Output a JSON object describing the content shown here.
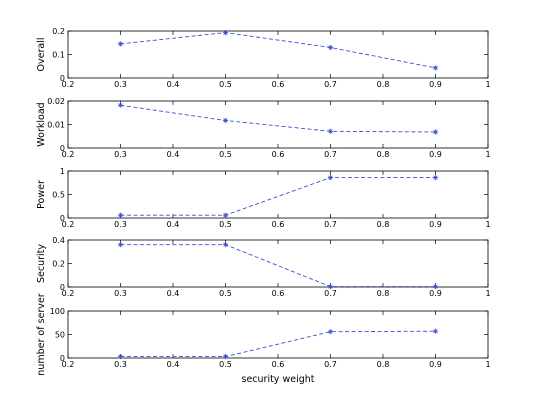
{
  "figure": {
    "xlabel": "security weight",
    "line_color": "#3b4fd6",
    "axis_color": "#000000",
    "marker": "asterisk",
    "line_style": "dashed"
  },
  "chart_data": [
    {
      "type": "line",
      "ylabel": "Overall",
      "xlabel": "",
      "xlim": [
        0.2,
        1
      ],
      "ylim": [
        0,
        0.2
      ],
      "xticks": [
        "0.2",
        "0.3",
        "0.4",
        "0.5",
        "0.6",
        "0.7",
        "0.8",
        "0.9",
        "1"
      ],
      "yticks": [
        "0",
        "0.1",
        "0.2"
      ],
      "ytick_values": [
        0,
        0.1,
        0.2
      ],
      "grid": false,
      "series": [
        {
          "x": [
            0.3,
            0.5,
            0.7,
            0.9
          ],
          "y": [
            0.145,
            0.193,
            0.13,
            0.043
          ]
        }
      ]
    },
    {
      "type": "line",
      "ylabel": "Workload",
      "xlabel": "",
      "xlim": [
        0.2,
        1
      ],
      "ylim": [
        0,
        0.02
      ],
      "xticks": [
        "0.2",
        "0.3",
        "0.4",
        "0.5",
        "0.6",
        "0.7",
        "0.8",
        "0.9",
        "1"
      ],
      "yticks": [
        "0",
        "0.01",
        "0.02"
      ],
      "ytick_values": [
        0,
        0.01,
        0.02
      ],
      "grid": false,
      "series": [
        {
          "x": [
            0.3,
            0.5,
            0.7,
            0.9
          ],
          "y": [
            0.0182,
            0.0117,
            0.0071,
            0.0068
          ]
        }
      ]
    },
    {
      "type": "line",
      "ylabel": "Power",
      "xlabel": "",
      "xlim": [
        0.2,
        1
      ],
      "ylim": [
        0,
        1
      ],
      "xticks": [
        "0.2",
        "0.3",
        "0.4",
        "0.5",
        "0.6",
        "0.7",
        "0.8",
        "0.9",
        "1"
      ],
      "yticks": [
        "0",
        "0.5",
        "1"
      ],
      "ytick_values": [
        0,
        0.5,
        1
      ],
      "grid": false,
      "series": [
        {
          "x": [
            0.3,
            0.5,
            0.7,
            0.9
          ],
          "y": [
            0.06,
            0.06,
            0.86,
            0.86
          ]
        }
      ]
    },
    {
      "type": "line",
      "ylabel": "Security",
      "xlabel": "",
      "xlim": [
        0.2,
        1
      ],
      "ylim": [
        0,
        0.4
      ],
      "xticks": [
        "0.2",
        "0.3",
        "0.4",
        "0.5",
        "0.6",
        "0.7",
        "0.8",
        "0.9",
        "1"
      ],
      "yticks": [
        "0",
        "0.2",
        "0.4"
      ],
      "ytick_values": [
        0,
        0.2,
        0.4
      ],
      "grid": false,
      "series": [
        {
          "x": [
            0.3,
            0.5,
            0.7,
            0.9
          ],
          "y": [
            0.36,
            0.36,
            0.003,
            0.003
          ]
        }
      ]
    },
    {
      "type": "line",
      "ylabel": "number of server",
      "xlabel": "security weight",
      "xlim": [
        0.2,
        1
      ],
      "ylim": [
        0,
        100
      ],
      "xticks": [
        "0.2",
        "0.3",
        "0.4",
        "0.5",
        "0.6",
        "0.7",
        "0.8",
        "0.9",
        "1"
      ],
      "yticks": [
        "0",
        "50",
        "100"
      ],
      "ytick_values": [
        0,
        50,
        100
      ],
      "grid": false,
      "series": [
        {
          "x": [
            0.3,
            0.5,
            0.7,
            0.9
          ],
          "y": [
            3,
            3,
            56,
            57
          ]
        }
      ]
    }
  ]
}
